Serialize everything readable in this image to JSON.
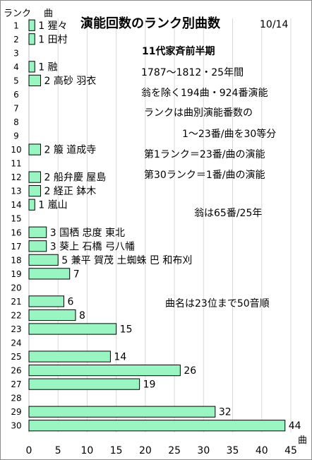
{
  "chart_data": {
    "type": "bar",
    "orientation": "horizontal",
    "title": "演能回数のランク別曲数",
    "title_suffix": "10/14",
    "subtitle": "11代家斉前半期",
    "ylabel": "ランク",
    "xlabel": "曲",
    "xlabel_bottom": "曲",
    "xlim": [
      0,
      45
    ],
    "x_ticks": [
      0,
      5,
      10,
      15,
      20,
      25,
      30,
      35,
      40,
      45
    ],
    "grid": true,
    "bar_color": "#99f5c2",
    "bar_edge_color": "#000000",
    "categories": [
      "1",
      "2",
      "3",
      "4",
      "5",
      "6",
      "7",
      "8",
      "9",
      "10",
      "11",
      "12",
      "13",
      "14",
      "15",
      "16",
      "17",
      "18",
      "19",
      "20",
      "21",
      "22",
      "23",
      "24",
      "25",
      "26",
      "27",
      "28",
      "29",
      "30"
    ],
    "values": [
      1,
      1,
      0,
      1,
      2,
      0,
      0,
      0,
      0,
      2,
      0,
      2,
      2,
      1,
      0,
      3,
      3,
      5,
      7,
      0,
      6,
      8,
      15,
      0,
      14,
      26,
      19,
      0,
      32,
      44
    ],
    "bar_labels": {
      "1": "1 猩々",
      "2": "1 田村",
      "4": "1 融",
      "5": "2 高砂 羽衣",
      "10": "2 箙 道成寺",
      "12": "2 船弁慶 屋島",
      "13": "2 経正 鉢木",
      "14": "1 嵐山",
      "16": "3 国栖 忠度 東北",
      "17": "3 葵上 石橋 弓八幡",
      "18": "5 兼平 賀茂 土蜘蛛 巴 和布刈",
      "19": "7",
      "21": "6",
      "22": "8",
      "23": "15",
      "25": "14",
      "26": "26",
      "27": "19",
      "29": "32",
      "30": "44"
    },
    "annotations": [
      "1787〜1812・25年間",
      "翁を除く194曲・924番演能",
      "ランクは曲別演能番数の",
      "1〜23番/曲を30等分",
      "第1ランク＝23番/曲の演能",
      "第30ランク＝1番/曲の演能",
      "翁は65番/25年",
      "曲名は23位まで50音順"
    ]
  }
}
